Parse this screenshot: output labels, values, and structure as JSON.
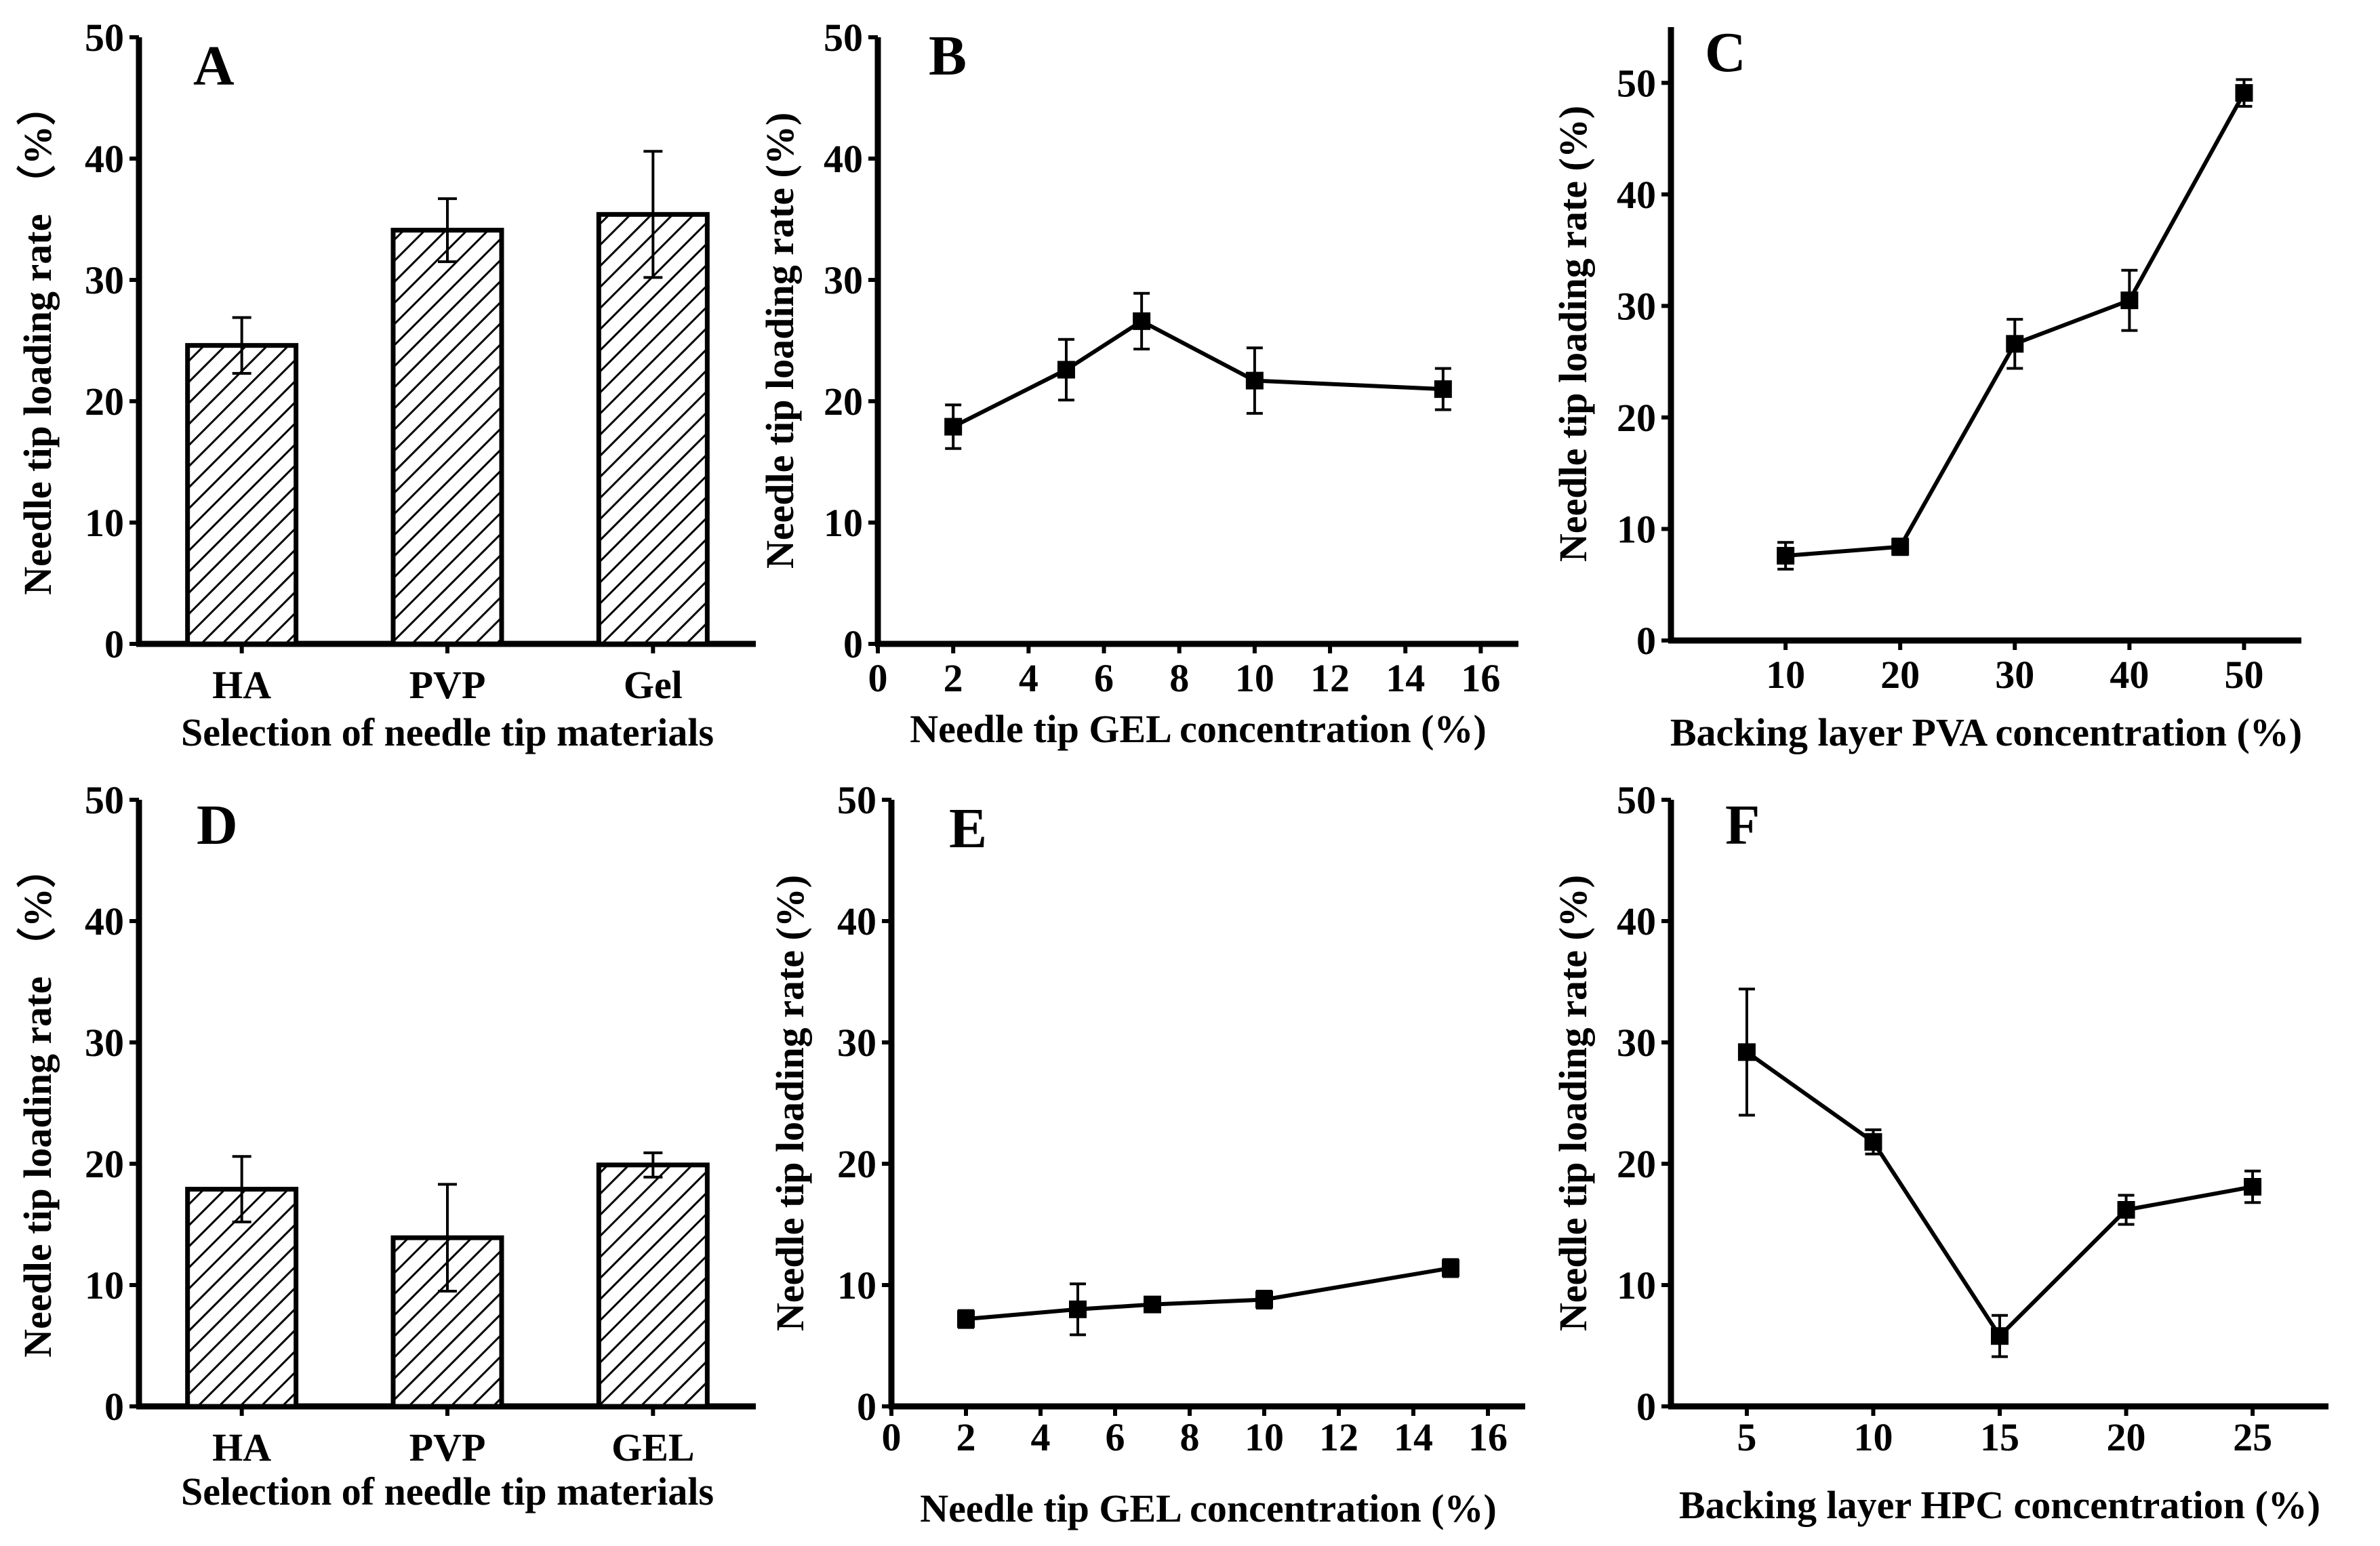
{
  "colors": {
    "ink": "#000000",
    "background": "#ffffff",
    "bar_fill": "hatched"
  },
  "chart_data": [
    {
      "panel": "A",
      "type": "bar",
      "categories": [
        "HA",
        "PVP",
        "Gel"
      ],
      "values": [
        24.6,
        34.1,
        35.4
      ],
      "errors": [
        2.3,
        2.6,
        5.2
      ],
      "xlabel": "Selection of needle tip materials",
      "ylabel": "Needle tip loading rate （%）",
      "ylim": [
        0,
        50
      ],
      "yticks": [
        0,
        10,
        20,
        30,
        40,
        50
      ]
    },
    {
      "panel": "B",
      "type": "line",
      "x": [
        2,
        5,
        7,
        10,
        15
      ],
      "y": [
        17.9,
        22.6,
        26.6,
        21.7,
        21.0
      ],
      "errors": [
        1.8,
        2.5,
        2.3,
        2.7,
        1.7
      ],
      "xlabel": "Needle tip GEL concentration (%)",
      "ylabel": "Needle tip loading rate (%)",
      "xlim": [
        0,
        17
      ],
      "ylim": [
        0,
        50
      ],
      "xticks": [
        0,
        2,
        4,
        6,
        8,
        10,
        12,
        14,
        16
      ],
      "yticks": [
        0,
        10,
        20,
        30,
        40,
        50
      ]
    },
    {
      "panel": "C",
      "type": "line",
      "x": [
        10,
        20,
        30,
        40,
        50
      ],
      "y": [
        7.6,
        8.4,
        26.6,
        30.5,
        49.1
      ],
      "errors": [
        1.2,
        0.7,
        2.2,
        2.7,
        1.2
      ],
      "xlabel": "Backing layer PVA concentration (%)",
      "ylabel": "Needle tip loading rate (%)",
      "xlim": [
        0,
        55
      ],
      "ylim": [
        0,
        55
      ],
      "xticks": [
        10,
        20,
        30,
        40,
        50
      ],
      "yticks": [
        0,
        10,
        20,
        30,
        40,
        50
      ]
    },
    {
      "panel": "D",
      "type": "bar",
      "categories": [
        "HA",
        "PVP",
        "GEL"
      ],
      "values": [
        17.9,
        13.9,
        19.9
      ],
      "errors": [
        2.7,
        4.4,
        1.0
      ],
      "xlabel": "Selection of needle tip materials",
      "ylabel": "Needle tip loading rate （%）",
      "ylim": [
        0,
        50
      ],
      "yticks": [
        0,
        10,
        20,
        30,
        40,
        50
      ]
    },
    {
      "panel": "E",
      "type": "line",
      "x": [
        2,
        5,
        7,
        10,
        15
      ],
      "y": [
        7.2,
        8.0,
        8.4,
        8.8,
        11.4
      ],
      "errors": [
        0.7,
        2.1,
        0.5,
        0.7,
        0.7
      ],
      "xlabel": "Needle tip GEL concentration (%)",
      "ylabel": "Needle tip loading rate (%)",
      "xlim": [
        0,
        17
      ],
      "ylim": [
        0,
        50
      ],
      "xticks": [
        0,
        2,
        4,
        6,
        8,
        10,
        12,
        14,
        16
      ],
      "yticks": [
        0,
        10,
        20,
        30,
        40,
        50
      ]
    },
    {
      "panel": "F",
      "type": "line",
      "x": [
        5,
        10,
        15,
        20,
        25
      ],
      "y": [
        29.2,
        21.8,
        5.8,
        16.2,
        18.1
      ],
      "errors": [
        5.2,
        1.0,
        1.7,
        1.2,
        1.3
      ],
      "xlabel": "Backing layer HPC concentration (%)",
      "ylabel": "Needle tip loading rate (%)",
      "xlim": [
        2,
        28
      ],
      "ylim": [
        0,
        50
      ],
      "xticks": [
        5,
        10,
        15,
        20,
        25
      ],
      "yticks": [
        0,
        10,
        20,
        30,
        40,
        50
      ]
    }
  ]
}
